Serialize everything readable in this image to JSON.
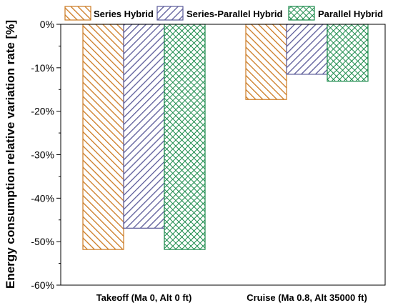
{
  "chart_data": {
    "type": "bar",
    "title": "",
    "xlabel": "",
    "ylabel": "Energy consumption relative variation rate [%]",
    "categories": [
      "Takeoff (Ma 0, Alt 0 ft)",
      "Cruise (Ma 0.8, Alt 35000 ft)"
    ],
    "series": [
      {
        "name": "Series Hybrid",
        "values": [
          -51.8,
          -17.3
        ],
        "color": "#cc7a22",
        "pattern": "diagonal-hatch"
      },
      {
        "name": "Series-Parallel Hybrid",
        "values": [
          -46.9,
          -11.5
        ],
        "color": "#5b5b99",
        "pattern": "diagonal-hatch"
      },
      {
        "name": "Parallel Hybrid",
        "values": [
          -51.8,
          -13.1
        ],
        "color": "#1a8a4a",
        "pattern": "crosshatch"
      }
    ],
    "ylim": [
      -60,
      0
    ],
    "yticks": [
      0,
      -10,
      -20,
      -30,
      -40,
      -50,
      -60
    ],
    "ytick_labels": [
      "0%",
      "-10%",
      "-20%",
      "-30%",
      "-40%",
      "-50%",
      "-60%"
    ],
    "grid": false,
    "legend_position": "top"
  }
}
